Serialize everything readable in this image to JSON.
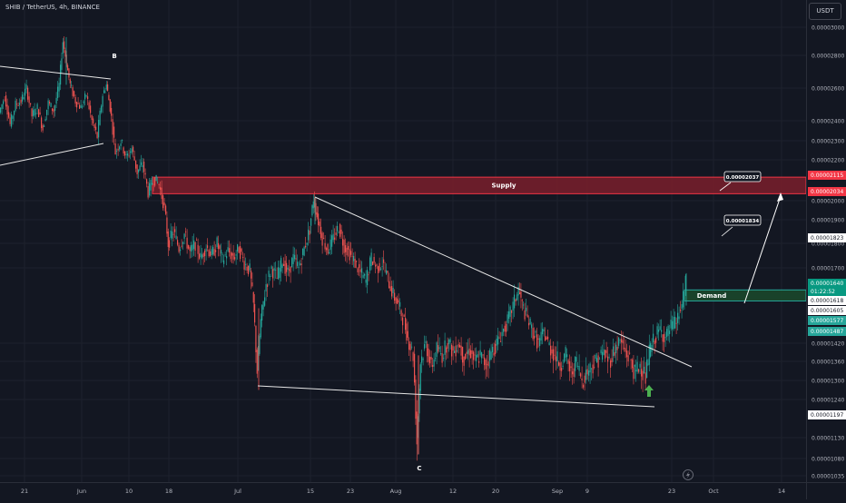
{
  "header": {
    "symbol_title": "SHIB / TetherUS, 4h, BINANCE",
    "currency_button": "USDT"
  },
  "colors": {
    "background": "#131722",
    "candle_up": "#26a69a",
    "candle_down": "#ef5350",
    "supply_fill": "#7a1f2b",
    "supply_border": "#f23645",
    "demand_fill": "#1b4a2c",
    "demand_border": "#26a69a",
    "trendline": "#e6e6e6",
    "arrow_marker": "#4caf50"
  },
  "icons": {
    "lightning": "lightning-icon"
  },
  "chart_data": {
    "type": "candlestick",
    "price_axis": {
      "min": 1.03e-05,
      "max": 3.02e-05,
      "ticks": [
        "0.00003000",
        "0.00002800",
        "0.00002600",
        "0.00002400",
        "0.00002300",
        "0.00002200",
        "0.00002000",
        "0.00001900",
        "0.00001800",
        "0.00001700",
        "0.00001420",
        "0.00001360",
        "0.00001300",
        "0.00001240",
        "0.00001130",
        "0.00001080",
        "0.00001035"
      ]
    },
    "time_axis": {
      "ticks": [
        "21",
        "Jun",
        "10",
        "18",
        "Jul",
        "15",
        "23",
        "Aug",
        "12",
        "20",
        "Sep",
        "9",
        "23",
        "Oct",
        "14"
      ]
    },
    "price_path": [
      [
        0,
        2.45e-05
      ],
      [
        6,
        2.55e-05
      ],
      [
        12,
        2.38e-05
      ],
      [
        18,
        2.5e-05
      ],
      [
        24,
        2.52e-05
      ],
      [
        30,
        2.6e-05
      ],
      [
        36,
        2.43e-05
      ],
      [
        42,
        2.48e-05
      ],
      [
        48,
        2.36e-05
      ],
      [
        54,
        2.51e-05
      ],
      [
        60,
        2.46e-05
      ],
      [
        66,
        2.62e-05
      ],
      [
        70,
        2.9e-05
      ],
      [
        74,
        2.75e-05
      ],
      [
        78,
        2.62e-05
      ],
      [
        84,
        2.52e-05
      ],
      [
        90,
        2.48e-05
      ],
      [
        96,
        2.56e-05
      ],
      [
        102,
        2.4e-05
      ],
      [
        108,
        2.32e-05
      ],
      [
        114,
        2.56e-05
      ],
      [
        118,
        2.62e-05
      ],
      [
        122,
        2.48e-05
      ],
      [
        128,
        2.24e-05
      ],
      [
        134,
        2.3e-05
      ],
      [
        140,
        2.21e-05
      ],
      [
        146,
        2.26e-05
      ],
      [
        152,
        2.14e-05
      ],
      [
        158,
        2.18e-05
      ],
      [
        164,
        2.04e-05
      ],
      [
        170,
        2.11e-05
      ],
      [
        176,
        2.08e-05
      ],
      [
        182,
        1.96e-05
      ],
      [
        186,
        1.8e-05
      ],
      [
        192,
        1.85e-05
      ],
      [
        198,
        1.78e-05
      ],
      [
        204,
        1.84e-05
      ],
      [
        210,
        1.76e-05
      ],
      [
        216,
        1.8e-05
      ],
      [
        222,
        1.74e-05
      ],
      [
        228,
        1.79e-05
      ],
      [
        234,
        1.75e-05
      ],
      [
        240,
        1.8e-05
      ],
      [
        246,
        1.73e-05
      ],
      [
        252,
        1.77e-05
      ],
      [
        258,
        1.74e-05
      ],
      [
        264,
        1.78e-05
      ],
      [
        270,
        1.72e-05
      ],
      [
        276,
        1.69e-05
      ],
      [
        280,
        1.56e-05
      ],
      [
        284,
        1.33e-05
      ],
      [
        288,
        1.5e-05
      ],
      [
        294,
        1.64e-05
      ],
      [
        300,
        1.7e-05
      ],
      [
        306,
        1.66e-05
      ],
      [
        312,
        1.73e-05
      ],
      [
        318,
        1.68e-05
      ],
      [
        324,
        1.74e-05
      ],
      [
        330,
        1.7e-05
      ],
      [
        336,
        1.78e-05
      ],
      [
        342,
        1.86e-05
      ],
      [
        346,
        2.01e-05
      ],
      [
        350,
        1.92e-05
      ],
      [
        356,
        1.82e-05
      ],
      [
        362,
        1.77e-05
      ],
      [
        368,
        1.82e-05
      ],
      [
        374,
        1.87e-05
      ],
      [
        380,
        1.79e-05
      ],
      [
        386,
        1.76e-05
      ],
      [
        392,
        1.72e-05
      ],
      [
        398,
        1.68e-05
      ],
      [
        404,
        1.65e-05
      ],
      [
        410,
        1.74e-05
      ],
      [
        416,
        1.7e-05
      ],
      [
        422,
        1.72e-05
      ],
      [
        428,
        1.66e-05
      ],
      [
        434,
        1.6e-05
      ],
      [
        440,
        1.56e-05
      ],
      [
        446,
        1.5e-05
      ],
      [
        450,
        1.44e-05
      ],
      [
        456,
        1.38e-05
      ],
      [
        460,
        1.12e-05
      ],
      [
        464,
        1.36e-05
      ],
      [
        470,
        1.42e-05
      ],
      [
        476,
        1.34e-05
      ],
      [
        482,
        1.4e-05
      ],
      [
        488,
        1.38e-05
      ],
      [
        494,
        1.43e-05
      ],
      [
        500,
        1.39e-05
      ],
      [
        506,
        1.42e-05
      ],
      [
        512,
        1.37e-05
      ],
      [
        518,
        1.4e-05
      ],
      [
        524,
        1.36e-05
      ],
      [
        530,
        1.38e-05
      ],
      [
        536,
        1.35e-05
      ],
      [
        542,
        1.39e-05
      ],
      [
        548,
        1.42e-05
      ],
      [
        554,
        1.46e-05
      ],
      [
        560,
        1.5e-05
      ],
      [
        566,
        1.56e-05
      ],
      [
        572,
        1.62e-05
      ],
      [
        576,
        1.56e-05
      ],
      [
        582,
        1.51e-05
      ],
      [
        588,
        1.46e-05
      ],
      [
        594,
        1.42e-05
      ],
      [
        600,
        1.46e-05
      ],
      [
        606,
        1.41e-05
      ],
      [
        612,
        1.38e-05
      ],
      [
        618,
        1.35e-05
      ],
      [
        624,
        1.38e-05
      ],
      [
        630,
        1.32e-05
      ],
      [
        636,
        1.36e-05
      ],
      [
        642,
        1.3e-05
      ],
      [
        648,
        1.33e-05
      ],
      [
        654,
        1.35e-05
      ],
      [
        660,
        1.37e-05
      ],
      [
        666,
        1.39e-05
      ],
      [
        672,
        1.36e-05
      ],
      [
        678,
        1.4e-05
      ],
      [
        684,
        1.43e-05
      ],
      [
        690,
        1.39e-05
      ],
      [
        696,
        1.36e-05
      ],
      [
        700,
        1.32e-05
      ],
      [
        706,
        1.35e-05
      ],
      [
        712,
        1.31e-05
      ],
      [
        716,
        1.39e-05
      ],
      [
        722,
        1.44e-05
      ],
      [
        728,
        1.47e-05
      ],
      [
        734,
        1.44e-05
      ],
      [
        740,
        1.48e-05
      ],
      [
        746,
        1.5e-05
      ],
      [
        752,
        1.56e-05
      ],
      [
        756,
        1.64e-05
      ]
    ],
    "zones": [
      {
        "name": "Supply",
        "top": 2.115e-05,
        "bottom": 2.034e-05,
        "from_x": 168,
        "to_x": 888
      },
      {
        "name": "Demand",
        "top": 1.618e-05,
        "bottom": 1.577e-05,
        "from_x": 754,
        "to_x": 888
      }
    ],
    "price_labels": [
      {
        "text": "0.00002115",
        "price": 2.115e-05,
        "kind": "red"
      },
      {
        "text": "0.00002034",
        "price": 2.034e-05,
        "kind": "red"
      },
      {
        "text": "0.00001823",
        "price": 1.823e-05,
        "kind": "white"
      },
      {
        "text": "0.00001640",
        "price": 1.64e-05,
        "kind": "green-dark",
        "sub": "01:22:52"
      },
      {
        "text": "0.00001618",
        "price": 1.618e-05,
        "kind": "white"
      },
      {
        "text": "0.00001605",
        "price": 1.605e-05,
        "kind": "white"
      },
      {
        "text": "0.00001577",
        "price": 1.577e-05,
        "kind": "green"
      },
      {
        "text": "0.00001487",
        "price": 1.487e-05,
        "kind": "green"
      },
      {
        "text": "0.00001197",
        "price": 1.197e-05,
        "kind": "white"
      }
    ],
    "callouts": [
      {
        "text": "0.00002037",
        "price": 2.037e-05
      },
      {
        "text": "0.00001834",
        "price": 1.834e-05
      }
    ],
    "annotations": [
      {
        "text": "B",
        "label": "wave-b"
      },
      {
        "text": "C",
        "label": "wave-c"
      }
    ]
  }
}
